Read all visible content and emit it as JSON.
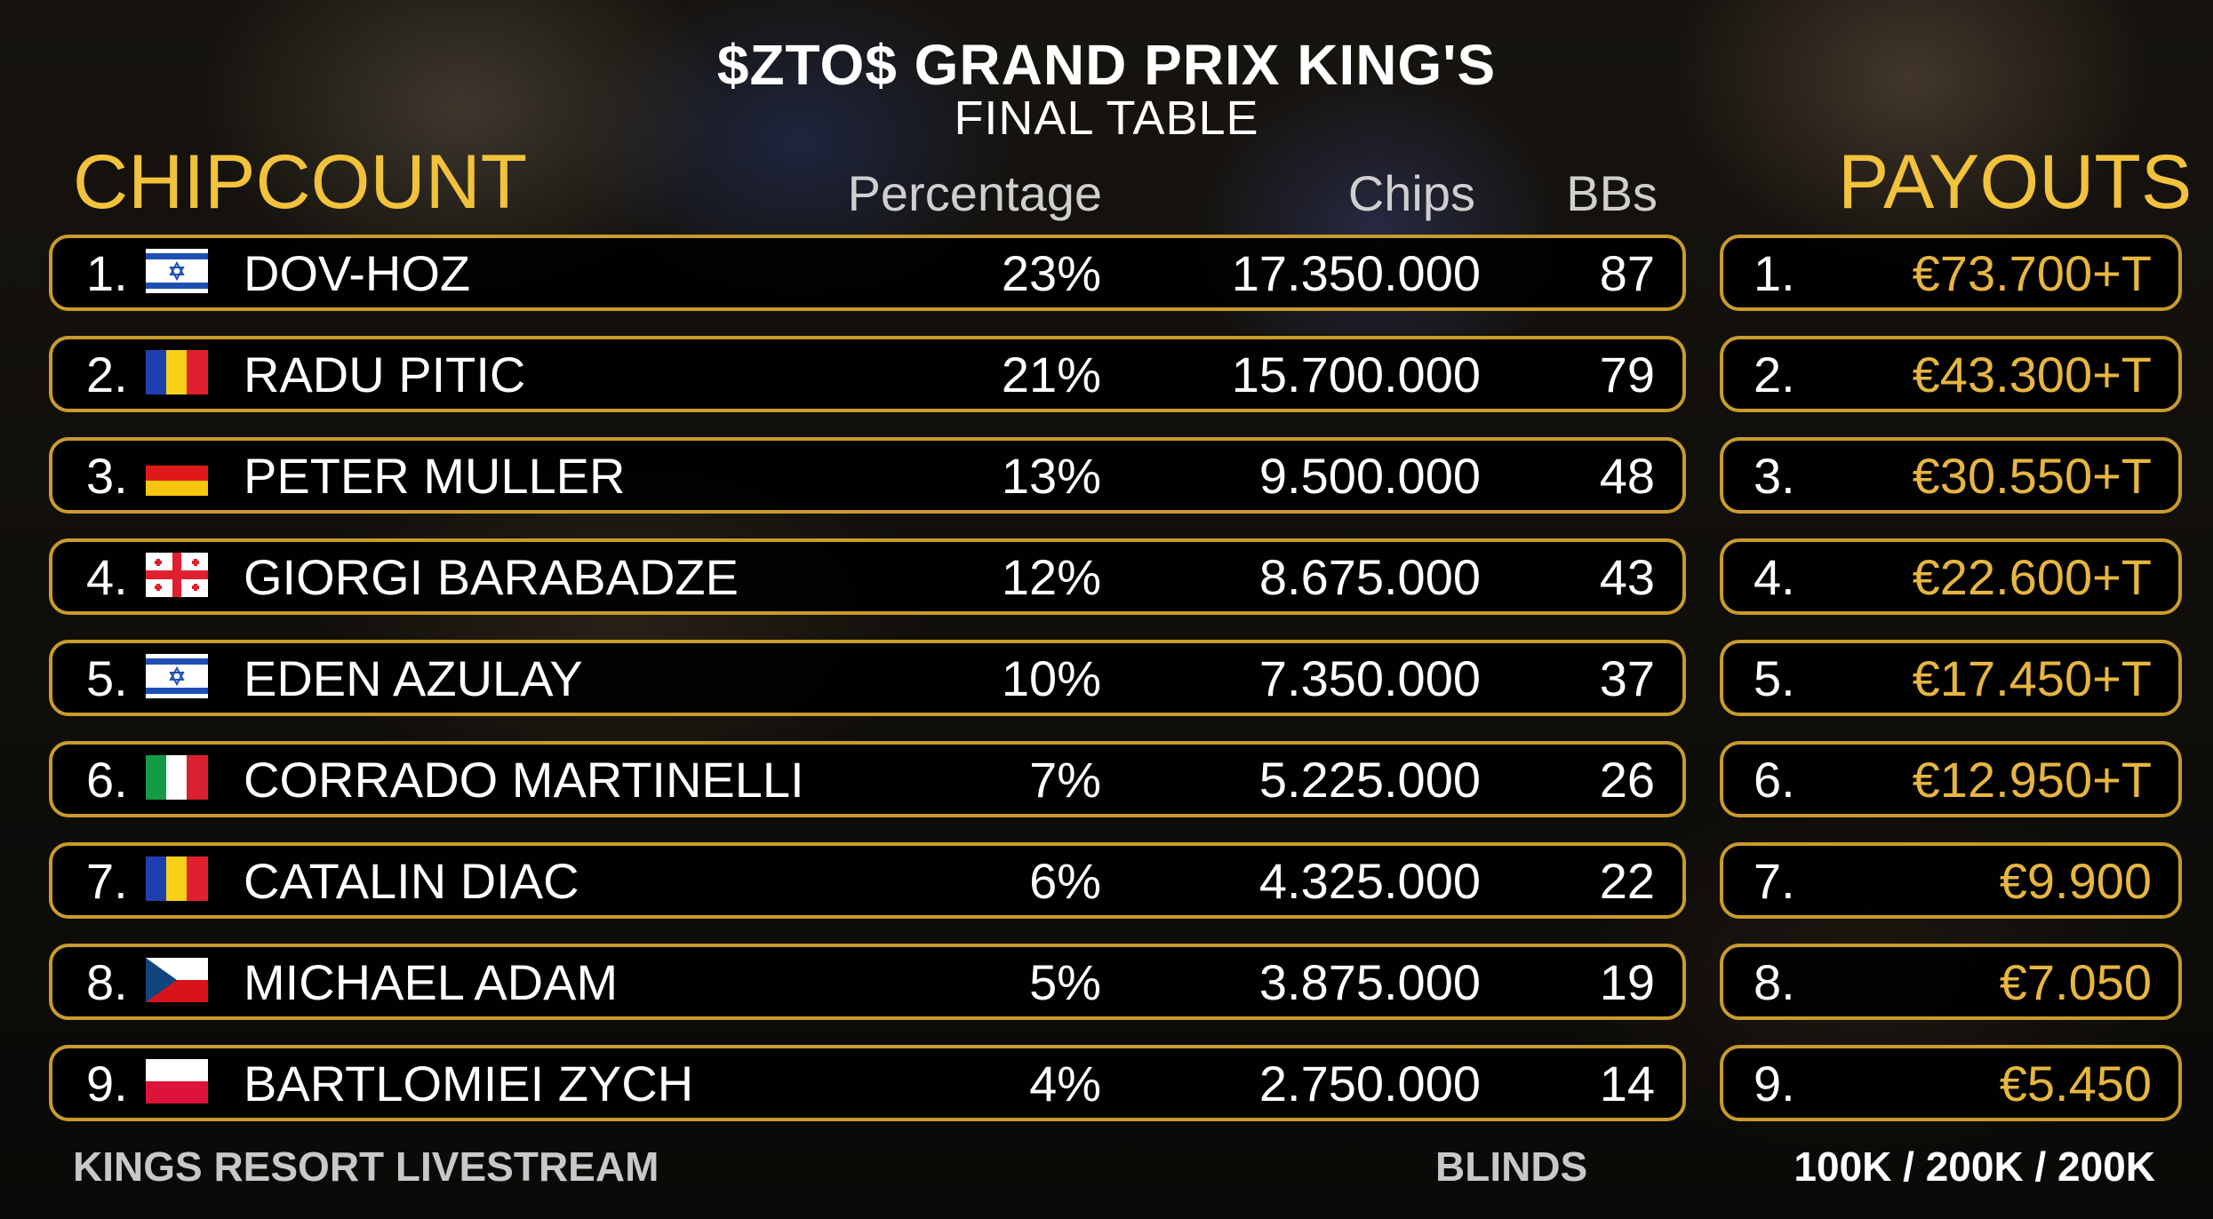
{
  "header": {
    "title": "$ZTO$ GRAND PRIX KING'S",
    "subtitle": "FINAL TABLE"
  },
  "chipcount": {
    "heading": "CHIPCOUNT",
    "columns": {
      "percentage": "Percentage",
      "chips": "Chips",
      "bbs": "BBs"
    },
    "rows": [
      {
        "rank": "1.",
        "flag": "israel-flag-icon",
        "name": "DOV-HOZ",
        "percentage": "23%",
        "chips": "17.350.000",
        "bbs": "87"
      },
      {
        "rank": "2.",
        "flag": "romania-flag-icon",
        "name": "RADU PITIC",
        "percentage": "21%",
        "chips": "15.700.000",
        "bbs": "79"
      },
      {
        "rank": "3.",
        "flag": "germany-flag-icon",
        "name": "PETER MULLER",
        "percentage": "13%",
        "chips": "9.500.000",
        "bbs": "48"
      },
      {
        "rank": "4.",
        "flag": "georgia-flag-icon",
        "name": "GIORGI BARABADZE",
        "percentage": "12%",
        "chips": "8.675.000",
        "bbs": "43"
      },
      {
        "rank": "5.",
        "flag": "israel-flag-icon",
        "name": "EDEN AZULAY",
        "percentage": "10%",
        "chips": "7.350.000",
        "bbs": "37"
      },
      {
        "rank": "6.",
        "flag": "italy-flag-icon",
        "name": "CORRADO MARTINELLI",
        "percentage": "7%",
        "chips": "5.225.000",
        "bbs": "26"
      },
      {
        "rank": "7.",
        "flag": "romania-flag-icon",
        "name": "CATALIN DIAC",
        "percentage": "6%",
        "chips": "4.325.000",
        "bbs": "22"
      },
      {
        "rank": "8.",
        "flag": "czech-flag-icon",
        "name": "MICHAEL ADAM",
        "percentage": "5%",
        "chips": "3.875.000",
        "bbs": "19"
      },
      {
        "rank": "9.",
        "flag": "poland-flag-icon",
        "name": "BARTLOMIEI ZYCH",
        "percentage": "4%",
        "chips": "2.750.000",
        "bbs": "14"
      }
    ]
  },
  "payouts": {
    "heading": "PAYOUTS",
    "rows": [
      {
        "place": "1.",
        "amount": "€73.700+T"
      },
      {
        "place": "2.",
        "amount": "€43.300+T"
      },
      {
        "place": "3.",
        "amount": "€30.550+T"
      },
      {
        "place": "4.",
        "amount": "€22.600+T"
      },
      {
        "place": "5.",
        "amount": "€17.450+T"
      },
      {
        "place": "6.",
        "amount": "€12.950+T"
      },
      {
        "place": "7.",
        "amount": "€9.900"
      },
      {
        "place": "8.",
        "amount": "€7.050"
      },
      {
        "place": "9.",
        "amount": "€5.450"
      }
    ]
  },
  "footer": {
    "brand": "KINGS RESORT LIVESTREAM",
    "blinds_label": "BLINDS",
    "blinds_value": "100K / 200K / 200K"
  },
  "colors": {
    "accent_gold": "#f2c23c",
    "row_border": "#c89b2c",
    "payout_text": "#e6b640"
  }
}
